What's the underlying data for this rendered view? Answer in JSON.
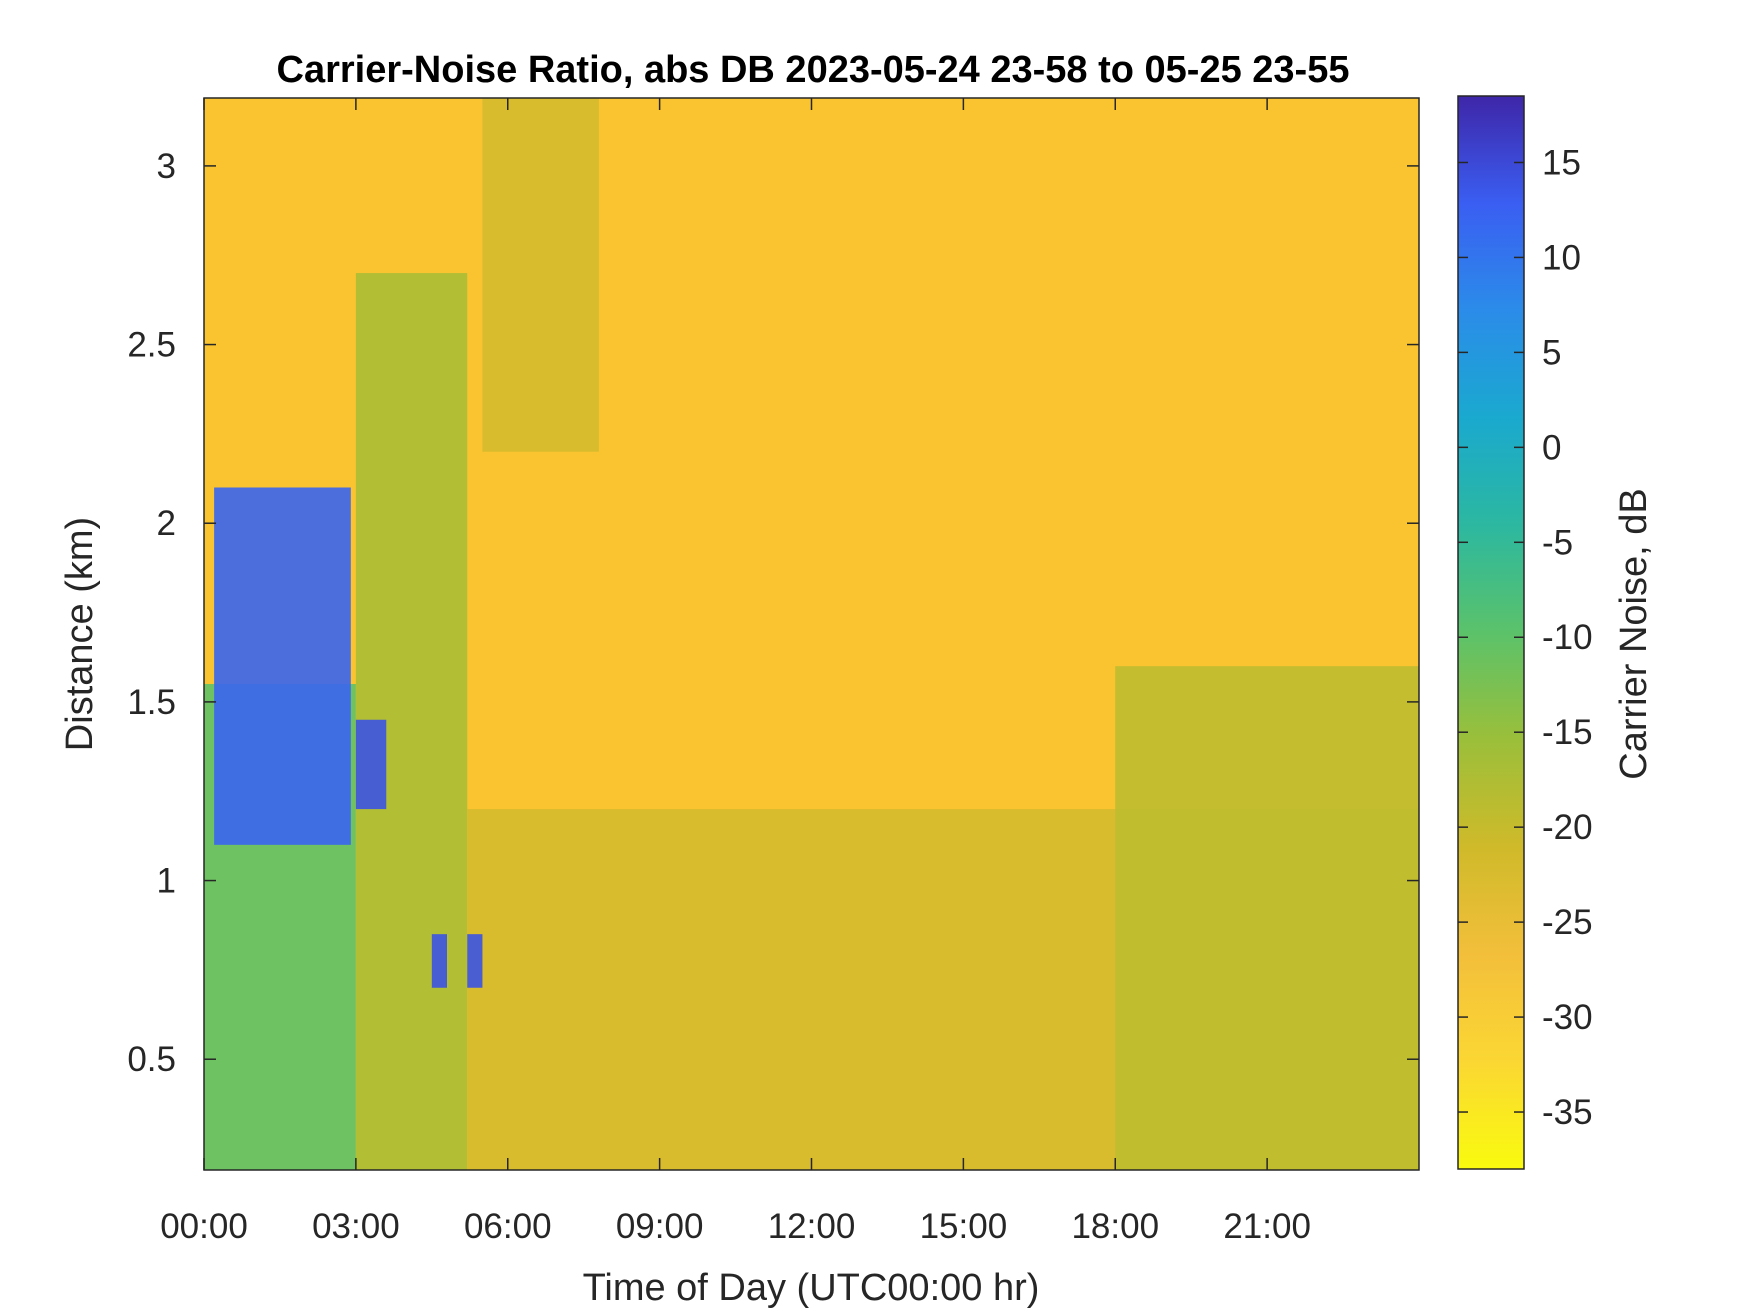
{
  "chart_data": {
    "type": "heatmap",
    "title": "Carrier-Noise Ratio, abs DB 2023-05-24 23-58 to 05-25 23-55",
    "xlabel": "Time of Day (UTC00:00 hr)",
    "ylabel": "Distance (km)",
    "colorbar_label": "Carrier Noise, dB",
    "xlim_hours": [
      0,
      24
    ],
    "ylim_km": [
      0.19,
      3.19
    ],
    "clim_db": [
      -38,
      18.5
    ],
    "x_ticks": [
      {
        "value": 0,
        "label": "00:00"
      },
      {
        "value": 3,
        "label": "03:00"
      },
      {
        "value": 6,
        "label": "06:00"
      },
      {
        "value": 9,
        "label": "09:00"
      },
      {
        "value": 12,
        "label": "12:00"
      },
      {
        "value": 15,
        "label": "15:00"
      },
      {
        "value": 18,
        "label": "18:00"
      },
      {
        "value": 21,
        "label": "21:00"
      }
    ],
    "y_ticks": [
      {
        "value": 0.5,
        "label": "0.5"
      },
      {
        "value": 1,
        "label": "1"
      },
      {
        "value": 1.5,
        "label": "1.5"
      },
      {
        "value": 2,
        "label": "2"
      },
      {
        "value": 2.5,
        "label": "2.5"
      },
      {
        "value": 3,
        "label": "3"
      }
    ],
    "colorbar_ticks": [
      {
        "value": 15,
        "label": "15"
      },
      {
        "value": 10,
        "label": "10"
      },
      {
        "value": 5,
        "label": "5"
      },
      {
        "value": 0,
        "label": "0"
      },
      {
        "value": -5,
        "label": "-5"
      },
      {
        "value": -10,
        "label": "-10"
      },
      {
        "value": -15,
        "label": "-15"
      },
      {
        "value": -20,
        "label": "-20"
      },
      {
        "value": -25,
        "label": "-25"
      },
      {
        "value": -30,
        "label": "-30"
      },
      {
        "value": -35,
        "label": "-35"
      }
    ],
    "colormap": "parula",
    "background_db": -30,
    "features": [
      {
        "description": "early-morning aerosol/cloud layer",
        "t_start": 0.0,
        "t_end": 3.0,
        "z_bottom": 0.19,
        "z_top": 1.55,
        "value_db": -10
      },
      {
        "description": "ascending layer",
        "t_start": 3.0,
        "t_end": 5.2,
        "z_bottom": 0.19,
        "z_top": 2.7,
        "value_db": -17
      },
      {
        "description": "upper layer",
        "t_start": 5.5,
        "t_end": 7.8,
        "z_bottom": 2.2,
        "z_top": 3.19,
        "value_db": -22
      },
      {
        "description": "boundary layer",
        "t_start": 5.2,
        "t_end": 24.0,
        "z_bottom": 0.19,
        "z_top": 1.2,
        "value_db": -22
      },
      {
        "description": "evening boundary layer",
        "t_start": 18.0,
        "t_end": 24.0,
        "z_bottom": 0.19,
        "z_top": 1.6,
        "value_db": -19
      },
      {
        "description": "strong returns (cloud edges)",
        "t_start": 0.2,
        "t_end": 2.9,
        "z_bottom": 1.1,
        "z_top": 2.1,
        "value_db": 12
      },
      {
        "description": "cloud patch",
        "t_start": 3.0,
        "t_end": 3.6,
        "z_bottom": 1.2,
        "z_top": 1.45,
        "value_db": 14
      },
      {
        "description": "cloud patch",
        "t_start": 4.5,
        "t_end": 4.8,
        "z_bottom": 0.7,
        "z_top": 0.85,
        "value_db": 14
      },
      {
        "description": "cloud patch",
        "t_start": 5.2,
        "t_end": 5.5,
        "z_bottom": 0.7,
        "z_top": 0.85,
        "value_db": 14
      }
    ]
  }
}
